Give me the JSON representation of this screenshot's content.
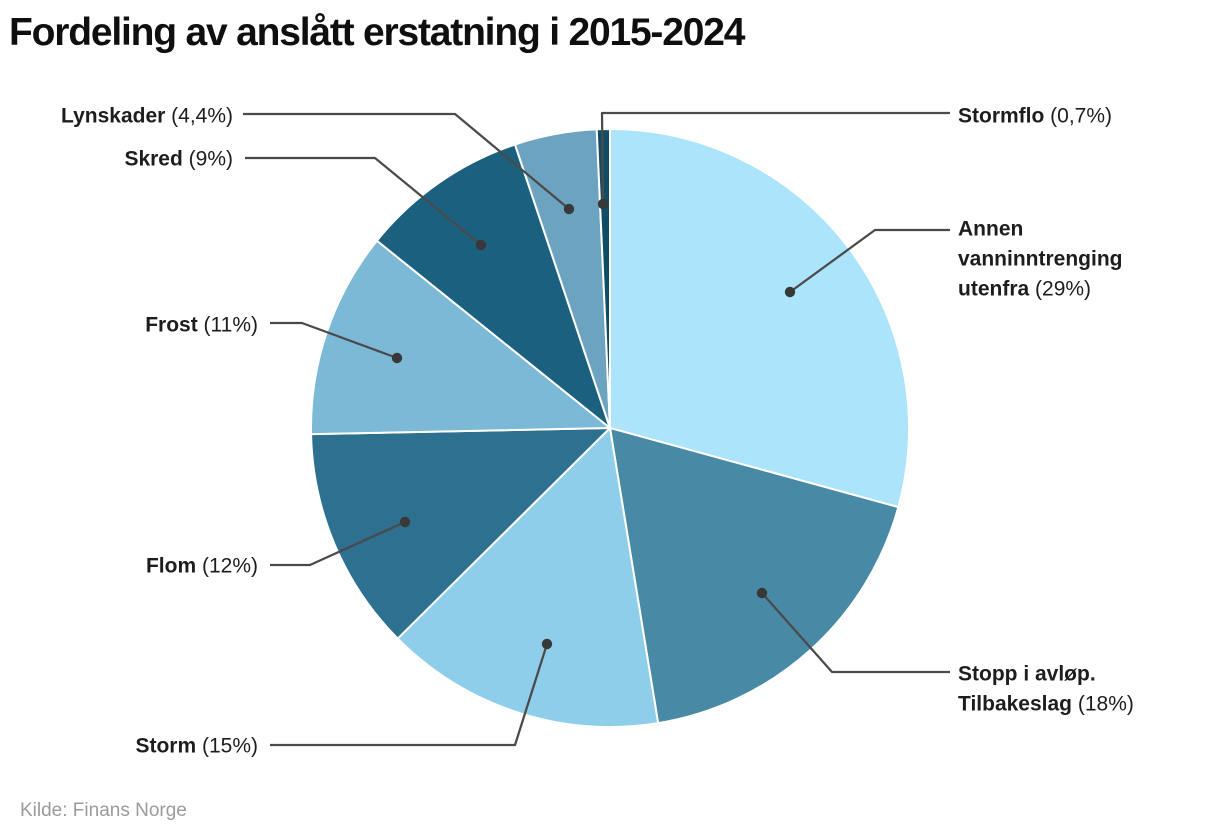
{
  "header": {
    "title": "Fordeling av anslått erstatning i 2015-2024"
  },
  "footer": {
    "source": "Kilde: Finans Norge"
  },
  "chart_data": {
    "type": "pie",
    "title": "Fordeling av anslått erstatning i 2015-2024",
    "source": "Kilde: Finans Norge",
    "value_unit": "percent",
    "direction": "clockwise",
    "start_angle_deg": 0,
    "legend_position": "callout-labels",
    "colors": {
      "connector_line": "#4a4a4a",
      "connector_dot": "#383838",
      "slice_border": "#ffffff",
      "label_text": "#1d1d1d",
      "title_text": "#0f0f0f",
      "source_text": "#9b9b9b"
    },
    "slices": [
      {
        "id": "annen",
        "name": "Annen vanninntrenging utenfra",
        "value": 29,
        "pct_text": "(29%)",
        "color": "#ABE4FB",
        "label_lines": [
          "Annen",
          "vanninntrenging",
          "utenfra"
        ],
        "side": "right"
      },
      {
        "id": "stopp",
        "name": "Stopp i avløp. Tilbakeslag",
        "value": 18,
        "pct_text": "(18%)",
        "color": "#4889A6",
        "label_lines": [
          "Stopp i avløp.",
          "Tilbakeslag"
        ],
        "side": "right"
      },
      {
        "id": "storm",
        "name": "Storm",
        "value": 15,
        "pct_text": "(15%)",
        "color": "#8FCEEB",
        "label_lines": [
          "Storm"
        ],
        "side": "left"
      },
      {
        "id": "flom",
        "name": "Flom",
        "value": 12,
        "pct_text": "(12%)",
        "color": "#2D7090",
        "label_lines": [
          "Flom"
        ],
        "side": "left"
      },
      {
        "id": "frost",
        "name": "Frost",
        "value": 11,
        "pct_text": "(11%)",
        "color": "#7CB9D6",
        "label_lines": [
          "Frost"
        ],
        "side": "left"
      },
      {
        "id": "skred",
        "name": "Skred",
        "value": 9,
        "pct_text": "(9%)",
        "color": "#1C607F",
        "label_lines": [
          "Skred"
        ],
        "side": "left"
      },
      {
        "id": "lynskader",
        "name": "Lynskader",
        "value": 4.4,
        "pct_text": "(4,4%)",
        "color": "#6BA3C0",
        "label_lines": [
          "Lynskader"
        ],
        "side": "left"
      },
      {
        "id": "stormflo",
        "name": "Stormflo",
        "value": 0.7,
        "pct_text": "(0,7%)",
        "color": "#0F4C66",
        "label_lines": [
          "Stormflo"
        ],
        "side": "right"
      }
    ]
  }
}
